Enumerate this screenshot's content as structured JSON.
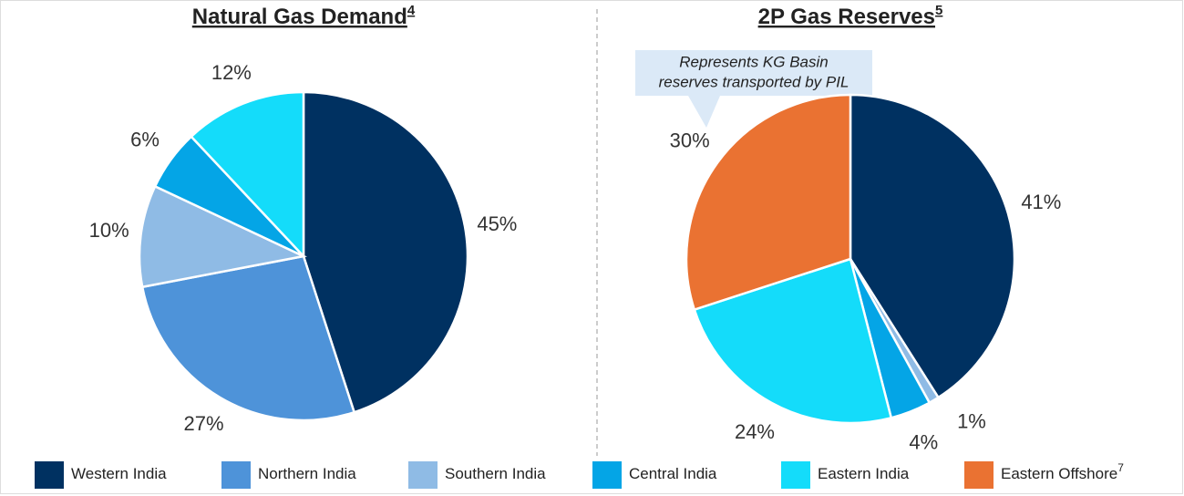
{
  "chart_data": [
    {
      "type": "pie",
      "title": "Natural Gas Demand",
      "title_note": "4",
      "categories": [
        "Western India",
        "Northern India",
        "Southern India",
        "Central India",
        "Eastern India"
      ],
      "values": [
        45,
        27,
        10,
        6,
        12
      ],
      "value_labels": [
        "45%",
        "27%",
        "10%",
        "6%",
        "12%"
      ],
      "colors": [
        "#003161",
        "#4e93d9",
        "#8fbbe5",
        "#04a5e6",
        "#14dcfa"
      ]
    },
    {
      "type": "pie",
      "title": "2P Gas Reserves",
      "title_note": "5",
      "categories": [
        "Western India",
        "Southern India",
        "Central India",
        "Eastern India",
        "Eastern Offshore"
      ],
      "values": [
        41,
        1,
        4,
        24,
        30
      ],
      "value_labels": [
        "41%",
        "1%",
        "4%",
        "24%",
        "30%"
      ],
      "colors": [
        "#003161",
        "#8fbbe5",
        "#04a5e6",
        "#14dcfa",
        "#ea7232"
      ],
      "annotation": [
        "Represents KG Basin",
        "reserves transported by PIL"
      ]
    }
  ],
  "legend": [
    {
      "name": "Western India",
      "color": "#003161"
    },
    {
      "name": "Northern India",
      "color": "#4e93d9"
    },
    {
      "name": "Southern India",
      "color": "#8fbbe5"
    },
    {
      "name": "Central India",
      "color": "#04a5e6"
    },
    {
      "name": "Eastern India",
      "color": "#14dcfa"
    },
    {
      "name": "Eastern Offshore",
      "color": "#ea7232",
      "note": "7"
    }
  ]
}
